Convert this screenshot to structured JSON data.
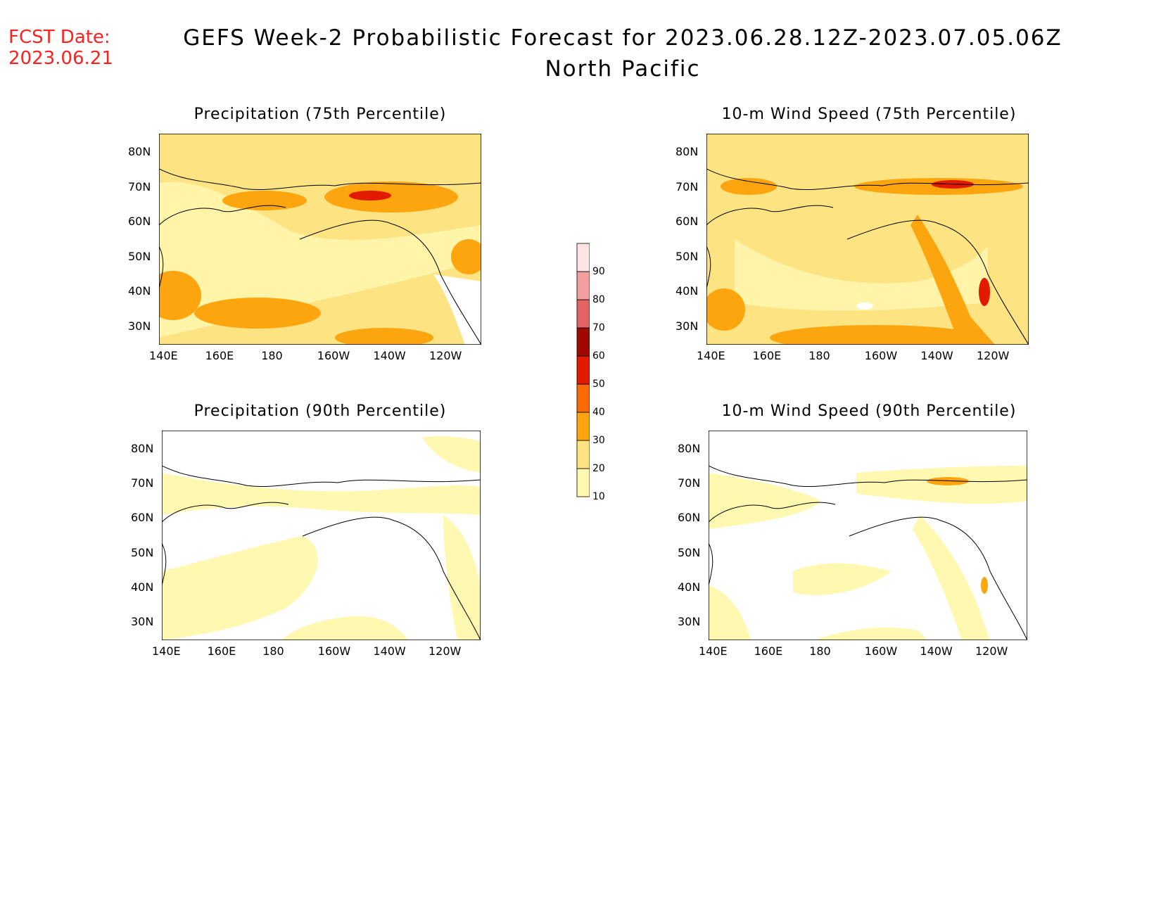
{
  "header": {
    "fcst_label": "FCST Date:",
    "fcst_date": "2023.06.21",
    "title_line1": "GEFS Week-2 Probabilistic Forecast for 2023.06.28.12Z-2023.07.05.06Z",
    "title_line2": "North Pacific"
  },
  "panels": [
    {
      "title": "Precipitation (75th Percentile)",
      "coverage": "high"
    },
    {
      "title": "10-m Wind Speed (75th Percentile)",
      "coverage": "high"
    },
    {
      "title": "Precipitation (90th Percentile)",
      "coverage": "low"
    },
    {
      "title": "10-m Wind Speed (90th Percentile)",
      "coverage": "low"
    }
  ],
  "axes": {
    "lat_ticks": [
      "80N",
      "70N",
      "60N",
      "50N",
      "40N",
      "30N"
    ],
    "lon_ticks": [
      "140E",
      "160E",
      "180",
      "160W",
      "140W",
      "120W"
    ]
  },
  "colorbar": {
    "levels": [
      "10",
      "20",
      "30",
      "40",
      "50",
      "60",
      "70",
      "80",
      "90"
    ],
    "colors": [
      "#fff8b0",
      "#fde382",
      "#fca50f",
      "#fb6a04",
      "#e31a02",
      "#9e0a00",
      "#e06464",
      "#f29f9f",
      "#fde3e3"
    ]
  }
}
